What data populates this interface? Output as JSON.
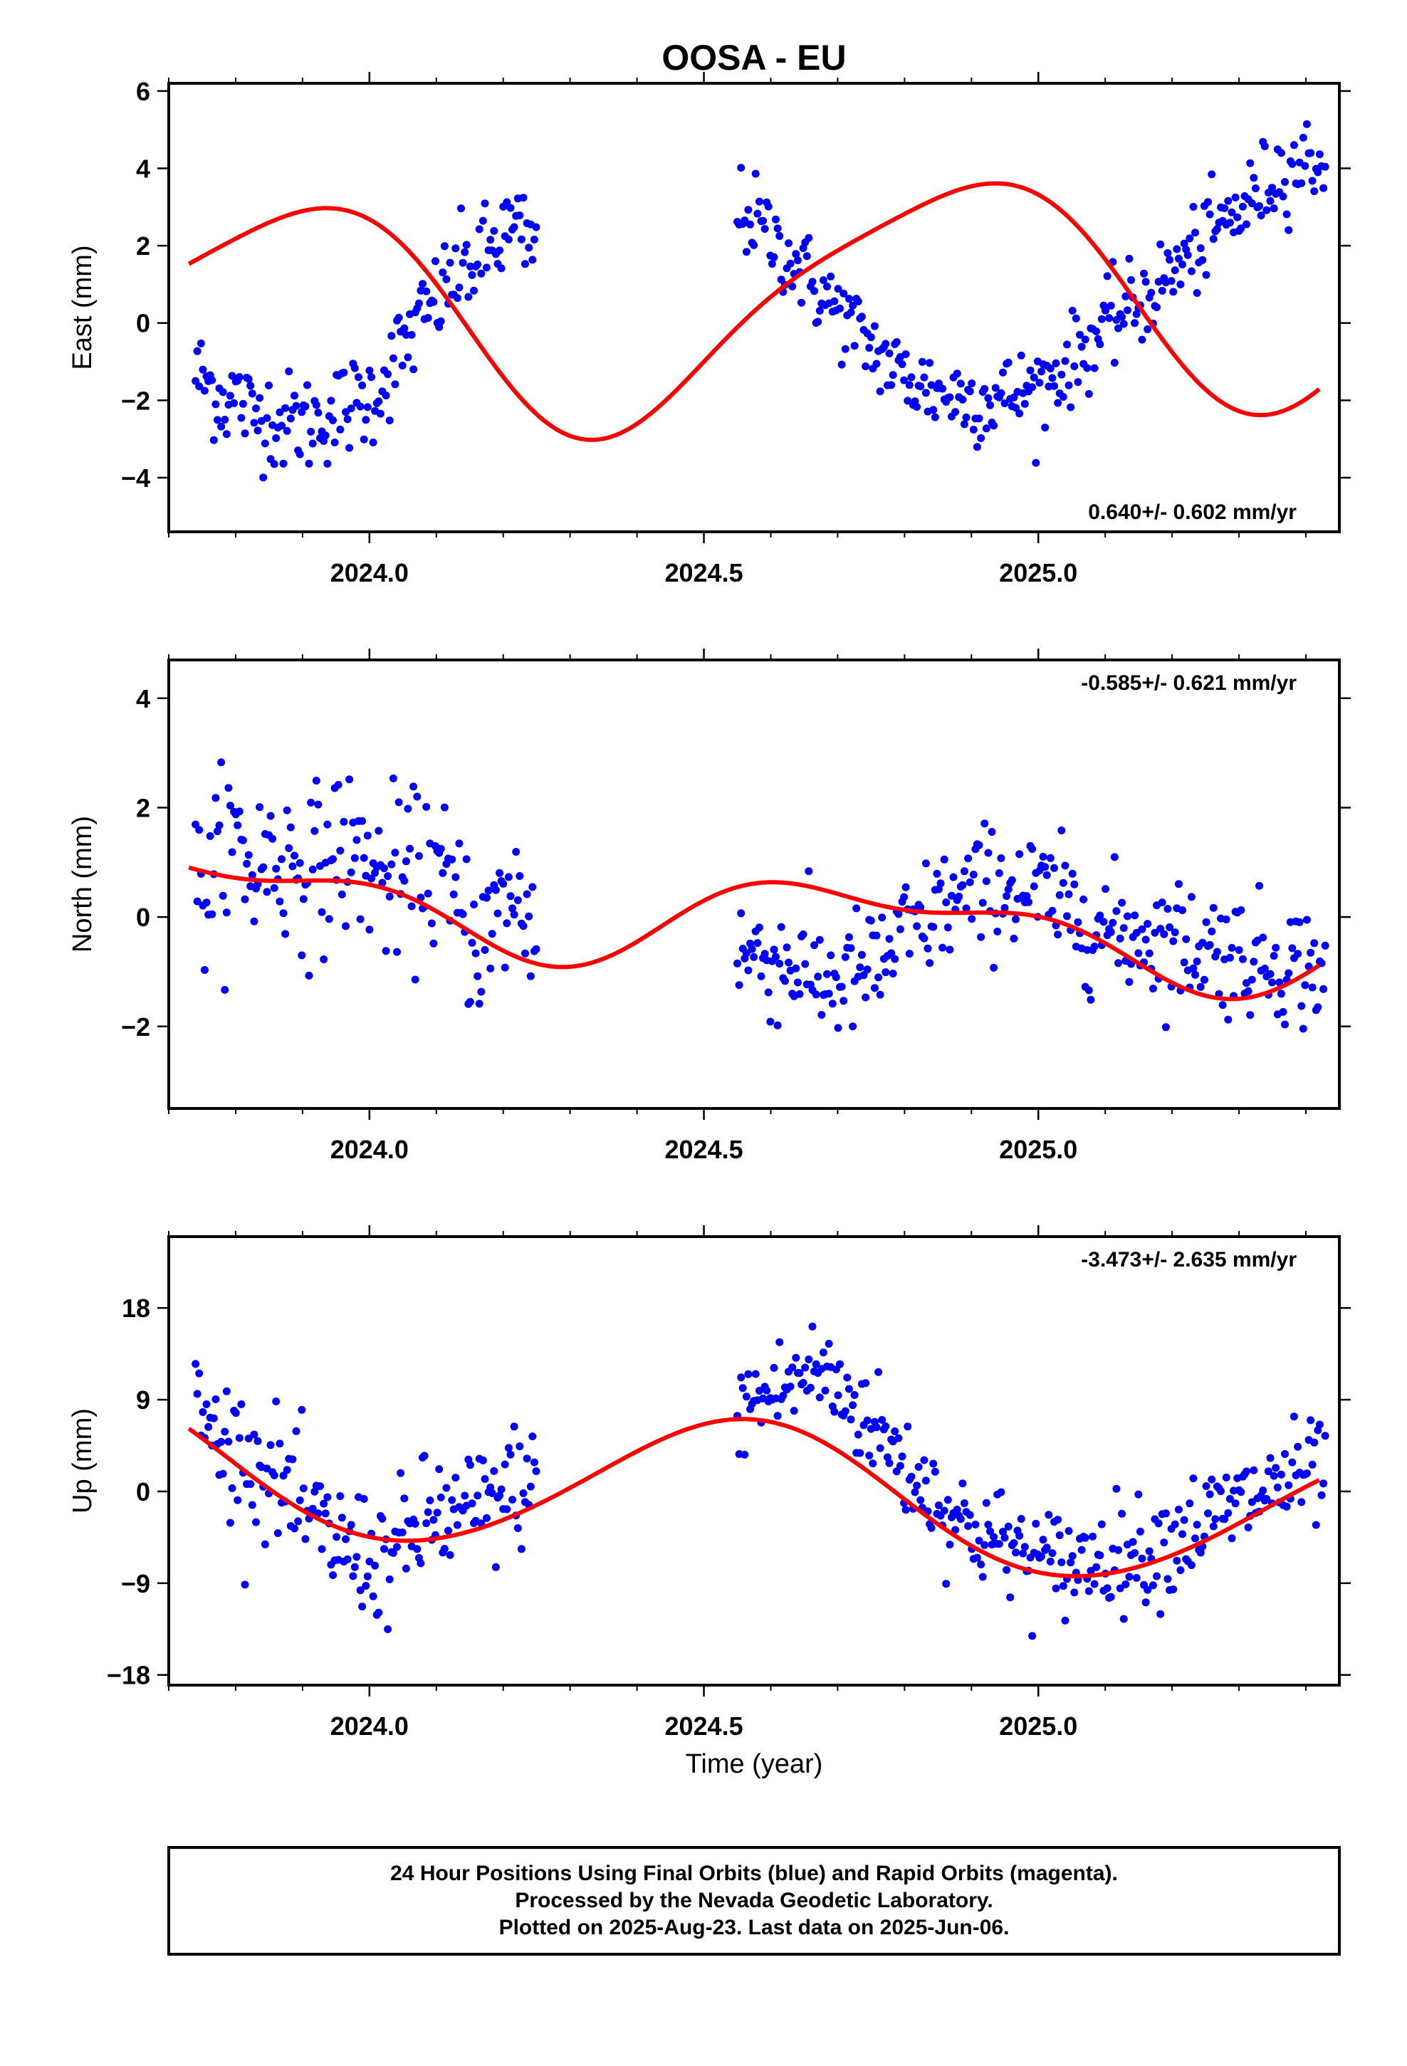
{
  "title": "OOSA - EU",
  "xlabel": "Time (year)",
  "footer": {
    "line1": "24 Hour Positions Using Final Orbits (blue) and Rapid Orbits (magenta).",
    "line2": "Processed by the Nevada Geodetic Laboratory.",
    "line3": "Plotted on 2025-Aug-23. Last data on 2025-Jun-06."
  },
  "colors": {
    "final_orbits": "#0000ff",
    "rapid_orbits": "#ff00ff",
    "model_fit": "#ff0000",
    "frame": "#000000"
  },
  "chart_data": [
    {
      "type": "scatter",
      "component": "East",
      "ylabel": "East (mm)",
      "xlim": [
        2023.7,
        2025.45
      ],
      "ylim": [
        -5.4,
        6.2
      ],
      "xticks": [
        2024.0,
        2024.5,
        2025.0
      ],
      "xtick_labels": [
        "2024.0",
        "2024.5",
        "2025.0"
      ],
      "yticks": [
        -4,
        -2,
        0,
        2,
        4,
        6
      ],
      "ytick_labels": [
        "−4",
        "−2",
        "0",
        "2",
        "4",
        "6"
      ],
      "rate_label": "0.640+/- 0.602 mm/yr",
      "rate_position": "bottom-right",
      "model": {
        "offset": 0.5,
        "trend": 0.64,
        "annual_cos": -2.0,
        "annual_sin": 2.2,
        "semiannual_cos": 0.5,
        "semiannual_sin": 0.3
      },
      "data_segments": [
        {
          "start": 2023.74,
          "end": 2024.25,
          "values": [
            -1.3,
            -1.6,
            -2.0,
            -1.9,
            -2.4,
            -2.3,
            -2.6,
            -2.5,
            -2.6,
            -2.4,
            -2.3,
            -2.1,
            -2.0,
            -1.6,
            -1.0,
            -0.4,
            0.1,
            0.6,
            1.1,
            1.5,
            1.6,
            2.0,
            2.4,
            2.2,
            1.8
          ],
          "scatter": 0.85
        },
        {
          "start": 2024.55,
          "end": 2025.43,
          "values": [
            3.0,
            2.6,
            2.0,
            1.5,
            0.8,
            0.3,
            -0.3,
            -0.8,
            -1.3,
            -1.6,
            -1.8,
            -1.9,
            -2.0,
            -1.9,
            -1.8,
            -1.6,
            -1.2,
            -0.7,
            -0.2,
            0.3,
            0.6,
            1.1,
            1.6,
            2.1,
            2.6,
            3.0,
            3.6,
            4.0,
            4.2,
            4.3
          ],
          "scatter": 0.75
        }
      ]
    },
    {
      "type": "scatter",
      "component": "North",
      "ylabel": "North (mm)",
      "xlim": [
        2023.7,
        2025.45
      ],
      "ylim": [
        -3.5,
        4.7
      ],
      "xticks": [
        2024.0,
        2024.5,
        2025.0
      ],
      "xtick_labels": [
        "2024.0",
        "2024.5",
        "2025.0"
      ],
      "yticks": [
        -2,
        0,
        2,
        4
      ],
      "ytick_labels": [
        "−2",
        "0",
        "2",
        "4"
      ],
      "rate_label": "-0.585+/- 0.621 mm/yr",
      "rate_position": "top-right",
      "model": {
        "offset": 0.0,
        "trend": -0.585,
        "annual_cos": 0.0,
        "annual_sin": 0.7,
        "semiannual_cos": 0.3,
        "semiannual_sin": 0.2
      },
      "data_segments": [
        {
          "start": 2023.74,
          "end": 2024.25,
          "values": [
            0.4,
            0.6,
            1.2,
            1.4,
            0.8,
            1.2,
            1.0,
            1.0,
            0.9,
            0.8,
            1.4,
            1.0,
            1.1,
            0.6,
            0.8,
            0.5,
            1.1,
            0.8,
            0.3,
            0.0,
            -0.5,
            -0.2,
            0.4,
            0.2,
            -0.2
          ],
          "scatter": 1.0
        },
        {
          "start": 2024.55,
          "end": 2025.43,
          "values": [
            -0.6,
            -0.7,
            -0.8,
            -0.9,
            -1.1,
            -1.2,
            -1.0,
            -0.9,
            -0.4,
            -0.2,
            0.2,
            0.3,
            0.5,
            0.6,
            0.5,
            0.4,
            0.2,
            0.0,
            -0.2,
            -0.3,
            -0.3,
            -0.4,
            -0.5,
            -0.5,
            -0.6,
            -0.7,
            -0.8,
            -0.8,
            -0.9,
            -0.9
          ],
          "scatter": 0.75
        }
      ]
    },
    {
      "type": "scatter",
      "component": "Up",
      "ylabel": "Up (mm)",
      "xlim": [
        2023.7,
        2025.45
      ],
      "ylim": [
        -19,
        25
      ],
      "xticks": [
        2024.0,
        2024.5,
        2025.0
      ],
      "xtick_labels": [
        "2024.0",
        "2024.5",
        "2025.0"
      ],
      "yticks": [
        -18,
        -9,
        0,
        9,
        18
      ],
      "ytick_labels": [
        "−18",
        "−9",
        "0",
        "9",
        "18"
      ],
      "rate_label": "-3.473+/- 2.635 mm/yr",
      "rate_position": "top-right",
      "model": {
        "offset": 0.2,
        "trend": -3.473,
        "annual_cos": 6.4,
        "annual_sin": 2.4,
        "semiannual_cos": 0.0,
        "semiannual_sin": 0.4
      },
      "data_segments": [
        {
          "start": 2023.74,
          "end": 2024.25,
          "values": [
            8.0,
            6.0,
            5.0,
            4.0,
            3.0,
            2.0,
            1.0,
            -1.0,
            -3.0,
            -4.0,
            -5.0,
            -6.0,
            -6.0,
            -7.0,
            -6.0,
            -5.0,
            -3.0,
            -2.0,
            -3.0,
            -2.0,
            -2.0,
            -1.0,
            0.0,
            1.0,
            0.0
          ],
          "scatter": 4.2
        },
        {
          "start": 2024.55,
          "end": 2025.43,
          "values": [
            8.0,
            9.0,
            10.0,
            11.0,
            12.0,
            10.0,
            8.0,
            6.0,
            3.0,
            1.0,
            -1.0,
            -3.0,
            -4.0,
            -5.0,
            -6.0,
            -7.0,
            -7.0,
            -7.0,
            -6.0,
            -6.0,
            -6.0,
            -5.0,
            -4.0,
            -3.0,
            -2.0,
            -1.0,
            0.0,
            1.0,
            1.5,
            2.0
          ],
          "scatter": 3.5
        }
      ]
    }
  ]
}
